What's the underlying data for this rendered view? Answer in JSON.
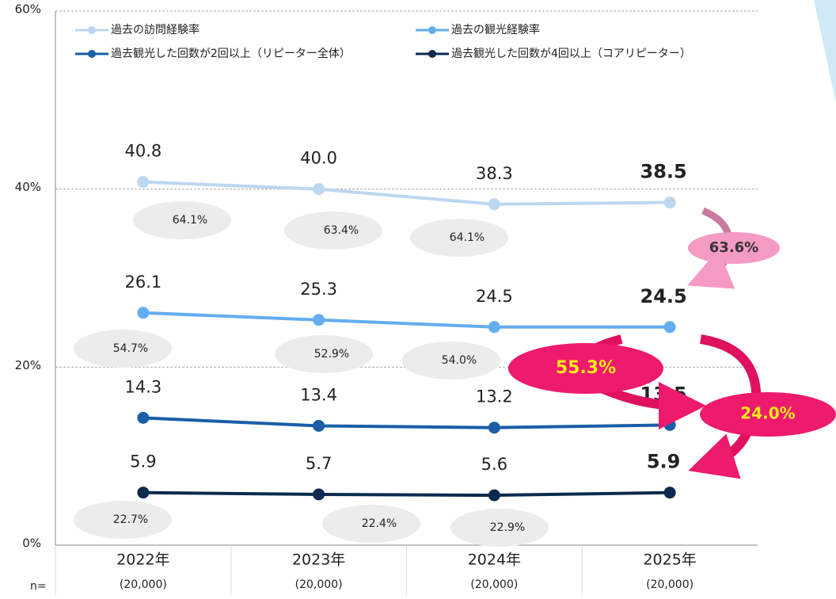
{
  "chart_data": {
    "type": "line",
    "categories": [
      "2022年",
      "2023年",
      "2024年",
      "2025年"
    ],
    "n_label": "n=",
    "n_values": [
      "(20,000)",
      "(20,000)",
      "(20,000)",
      "(20,000)"
    ],
    "ylim": [
      0,
      60
    ],
    "yticks": [
      {
        "value": 0,
        "label": "0%"
      },
      {
        "value": 20,
        "label": "20%"
      },
      {
        "value": 40,
        "label": "40%"
      },
      {
        "value": 60,
        "label": "60%"
      }
    ],
    "grid": true,
    "series": [
      {
        "name": "過去の訪問経験率",
        "color": "#bdd7f0",
        "values": [
          40.8,
          40.0,
          38.3,
          38.5
        ],
        "value_labels": [
          "40.8",
          "40.0",
          "38.3",
          "38.5"
        ]
      },
      {
        "name": "過去の観光経験率",
        "color": "#63adf0",
        "values": [
          26.1,
          25.3,
          24.5,
          24.5
        ],
        "value_labels": [
          "26.1",
          "25.3",
          "24.5",
          "24.5"
        ]
      },
      {
        "name": "過去観光した回数が2回以上（リピーター全体）",
        "color": "#1a5ea8",
        "values": [
          14.3,
          13.4,
          13.2,
          13.5
        ],
        "value_labels": [
          "14.3",
          "13.4",
          "13.2",
          "13.5"
        ]
      },
      {
        "name": "過去観光した回数が4回以上（コアリピーター）",
        "color": "#0c2a4f",
        "values": [
          5.9,
          5.7,
          5.6,
          5.9
        ],
        "value_labels": [
          "5.9",
          "5.7",
          "5.6",
          "5.9"
        ]
      }
    ],
    "ratio_labels": [
      "64.1%",
      "63.4%",
      "64.1%",
      "54.7%",
      "52.9%",
      "54.0%",
      "22.7%",
      "22.4%",
      "22.9%"
    ],
    "change_labels": [
      "63.6%",
      "55.3%",
      "24.0%"
    ]
  }
}
